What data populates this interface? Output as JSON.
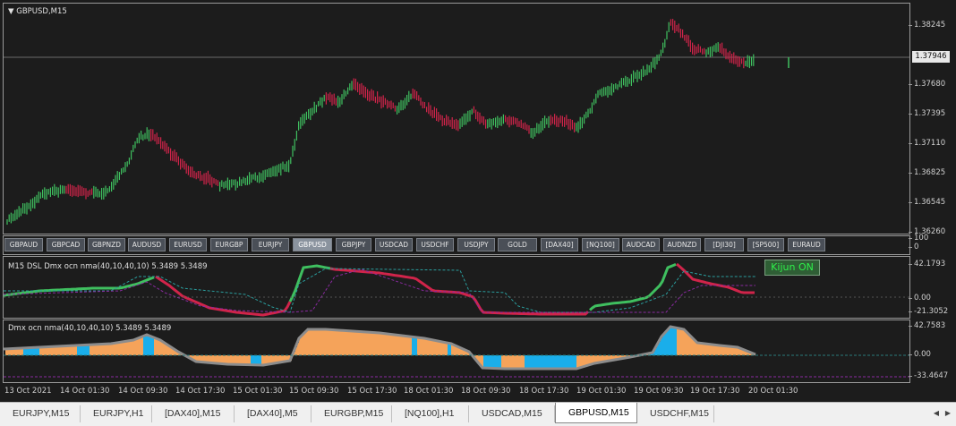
{
  "main": {
    "title": "GBPUSD,M15",
    "price_ticks": [
      "1.38245",
      "1.37680",
      "1.37395",
      "1.37110",
      "1.36825",
      "1.36545",
      "1.36260"
    ],
    "current_price": "1.37946"
  },
  "symbol_panel": {
    "buttons": [
      "GBPAUD",
      "GBPCAD",
      "GBPNZD",
      "AUDUSD",
      "EURUSD",
      "EURGBP",
      "EURJPY",
      "GBPUSD",
      "GBPJPY",
      "USDCAD",
      "USDCHF",
      "USDJPY",
      "GOLD",
      "[DAX40]",
      "[NQ100]",
      "AUDCAD",
      "AUDNZD",
      "[DJI30]",
      "[SP500]",
      "EURAUD"
    ],
    "active": "GBPUSD",
    "scale_top": "100",
    "scale_bottom": "0"
  },
  "indicator1": {
    "label": "M15  DSL Dmx ocn nma(40,10,40,10) 5.3489 5.3489",
    "ticks": [
      "42.1793",
      "0.00",
      "-21.3052"
    ],
    "kijun_label": "Kijun ON"
  },
  "indicator2": {
    "label": "Dmx ocn nma(40,10,40,10) 5.3489 5.3489",
    "ticks": [
      "42.7583",
      "0.00",
      "-33.4647"
    ]
  },
  "time_axis": [
    "13 Oct 2021",
    "14 Oct 01:30",
    "14 Oct 09:30",
    "14 Oct 17:30",
    "15 Oct 01:30",
    "15 Oct 09:30",
    "15 Oct 17:30",
    "18 Oct 01:30",
    "18 Oct 09:30",
    "18 Oct 17:30",
    "19 Oct 01:30",
    "19 Oct 09:30",
    "19 Oct 17:30",
    "20 Oct 01:30"
  ],
  "tabs": {
    "items": [
      "EURJPY,M15",
      "EURJPY,H1",
      "[DAX40],M15",
      "[DAX40],M5",
      "EURGBP,M15",
      "[NQ100],H1",
      "USDCAD,M15",
      "GBPUSD,M15",
      "USDCHF,M15"
    ],
    "active": "GBPUSD,M15"
  },
  "colors": {
    "bull": "#3fbf5f",
    "bear": "#d0244a",
    "histo_orange": "#f5a35a",
    "histo_blue": "#1aaeea",
    "signal_teal": "#2a9e9e",
    "signal_purple": "#8a2aa0"
  }
}
